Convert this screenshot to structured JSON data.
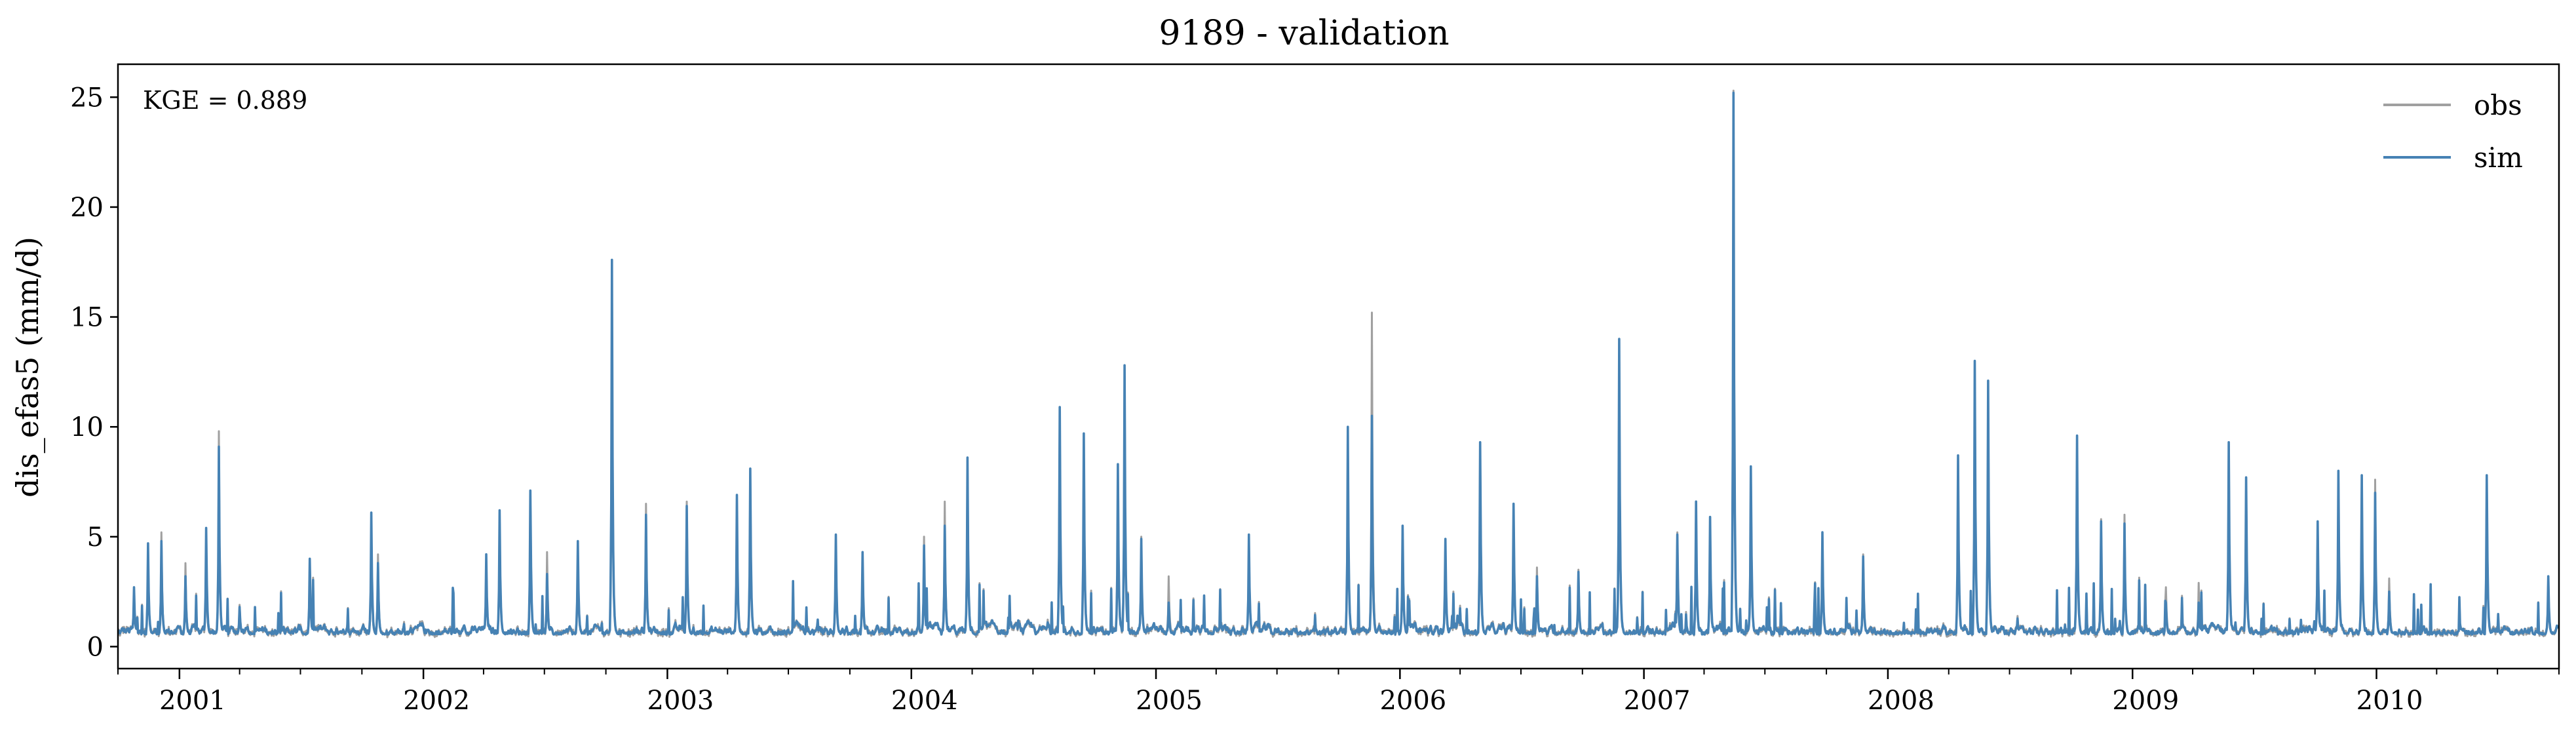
{
  "chart_data": {
    "type": "line",
    "title": "9189 - validation",
    "xlabel": "",
    "ylabel": "dis_efas5 (mm/d)",
    "annotation": "KGE = 0.889",
    "xlim": [
      "2000-10-01",
      "2010-10-01"
    ],
    "ylim": [
      -1,
      26.5
    ],
    "yticks": [
      0,
      5,
      10,
      15,
      20,
      25
    ],
    "xticks": [
      "2001",
      "2002",
      "2003",
      "2004",
      "2005",
      "2006",
      "2007",
      "2008",
      "2009",
      "2010"
    ],
    "legend_position": "top-right",
    "grid": false,
    "baseline": 0.55,
    "series": [
      {
        "name": "obs",
        "color": "#a0a0a0",
        "peaks": [
          [
            "2000-10-25",
            2.4
          ],
          [
            "2000-11-15",
            4.6
          ],
          [
            "2000-12-05",
            5.2
          ],
          [
            "2001-01-10",
            3.8
          ],
          [
            "2001-02-10",
            4.0
          ],
          [
            "2001-03-01",
            9.8
          ],
          [
            "2001-04-01",
            1.9
          ],
          [
            "2001-07-15",
            4.0
          ],
          [
            "2001-10-15",
            4.6
          ],
          [
            "2001-10-25",
            4.2
          ],
          [
            "2002-04-05",
            4.0
          ],
          [
            "2002-04-25",
            6.0
          ],
          [
            "2002-06-10",
            7.0
          ],
          [
            "2002-07-05",
            4.3
          ],
          [
            "2002-08-20",
            4.3
          ],
          [
            "2002-10-10",
            17.5
          ],
          [
            "2002-11-30",
            6.5
          ],
          [
            "2003-01-30",
            6.6
          ],
          [
            "2003-04-15",
            6.7
          ],
          [
            "2003-05-05",
            8.1
          ],
          [
            "2003-09-10",
            4.9
          ],
          [
            "2003-10-20",
            3.9
          ],
          [
            "2004-01-20",
            5.0
          ],
          [
            "2004-02-20",
            6.6
          ],
          [
            "2004-03-25",
            8.6
          ],
          [
            "2004-08-10",
            10.8
          ],
          [
            "2004-09-15",
            9.7
          ],
          [
            "2004-11-05",
            8.3
          ],
          [
            "2004-11-15",
            12.7
          ],
          [
            "2004-12-10",
            5.0
          ],
          [
            "2005-01-20",
            3.2
          ],
          [
            "2005-05-20",
            5.1
          ],
          [
            "2005-10-15",
            10.0
          ],
          [
            "2005-11-20",
            15.2
          ],
          [
            "2006-01-05",
            5.5
          ],
          [
            "2006-03-10",
            4.9
          ],
          [
            "2006-05-01",
            9.3
          ],
          [
            "2006-06-20",
            6.4
          ],
          [
            "2006-07-25",
            3.6
          ],
          [
            "2006-09-25",
            3.5
          ],
          [
            "2006-11-25",
            14.0
          ],
          [
            "2007-02-20",
            5.2
          ],
          [
            "2007-03-20",
            6.6
          ],
          [
            "2007-04-10",
            5.4
          ],
          [
            "2007-05-15",
            25.3
          ],
          [
            "2007-06-10",
            8.2
          ],
          [
            "2007-09-25",
            5.2
          ],
          [
            "2007-11-25",
            4.2
          ],
          [
            "2008-04-15",
            8.7
          ],
          [
            "2008-05-10",
            13.0
          ],
          [
            "2008-05-30",
            12.1
          ],
          [
            "2008-10-10",
            9.6
          ],
          [
            "2008-11-15",
            5.8
          ],
          [
            "2008-12-20",
            6.0
          ],
          [
            "2009-02-20",
            2.7
          ],
          [
            "2009-04-10",
            2.9
          ],
          [
            "2009-05-25",
            9.3
          ],
          [
            "2009-06-20",
            7.7
          ],
          [
            "2009-10-05",
            5.7
          ],
          [
            "2009-11-05",
            8.0
          ],
          [
            "2009-12-10",
            7.8
          ],
          [
            "2009-12-30",
            7.6
          ],
          [
            "2010-01-20",
            3.1
          ],
          [
            "2010-06-15",
            7.8
          ],
          [
            "2010-09-15",
            3.2
          ]
        ]
      },
      {
        "name": "sim",
        "color": "#4682b4",
        "peaks": [
          [
            "2000-10-25",
            2.7
          ],
          [
            "2000-11-15",
            4.7
          ],
          [
            "2000-12-05",
            4.8
          ],
          [
            "2001-01-10",
            3.2
          ],
          [
            "2001-02-10",
            5.4
          ],
          [
            "2001-03-01",
            9.1
          ],
          [
            "2001-04-01",
            1.8
          ],
          [
            "2001-07-15",
            4.0
          ],
          [
            "2001-10-15",
            6.1
          ],
          [
            "2001-10-25",
            3.8
          ],
          [
            "2002-04-05",
            4.2
          ],
          [
            "2002-04-25",
            6.2
          ],
          [
            "2002-06-10",
            7.1
          ],
          [
            "2002-07-05",
            3.3
          ],
          [
            "2002-08-20",
            4.8
          ],
          [
            "2002-10-10",
            17.6
          ],
          [
            "2002-11-30",
            6.0
          ],
          [
            "2003-01-30",
            6.4
          ],
          [
            "2003-04-15",
            6.9
          ],
          [
            "2003-05-05",
            8.1
          ],
          [
            "2003-09-10",
            5.1
          ],
          [
            "2003-10-20",
            4.3
          ],
          [
            "2004-01-20",
            4.6
          ],
          [
            "2004-02-20",
            5.5
          ],
          [
            "2004-03-25",
            8.6
          ],
          [
            "2004-08-10",
            10.9
          ],
          [
            "2004-09-15",
            9.7
          ],
          [
            "2004-11-05",
            8.3
          ],
          [
            "2004-11-15",
            12.8
          ],
          [
            "2004-12-10",
            4.9
          ],
          [
            "2005-01-20",
            2.0
          ],
          [
            "2005-05-20",
            5.1
          ],
          [
            "2005-10-15",
            10.0
          ],
          [
            "2005-11-20",
            10.5
          ],
          [
            "2006-01-05",
            5.5
          ],
          [
            "2006-03-10",
            4.9
          ],
          [
            "2006-05-01",
            9.3
          ],
          [
            "2006-06-20",
            6.5
          ],
          [
            "2006-07-25",
            3.2
          ],
          [
            "2006-09-25",
            3.4
          ],
          [
            "2006-11-25",
            14.0
          ],
          [
            "2007-02-20",
            5.1
          ],
          [
            "2007-03-20",
            6.6
          ],
          [
            "2007-04-10",
            5.9
          ],
          [
            "2007-05-15",
            25.2
          ],
          [
            "2007-06-10",
            8.2
          ],
          [
            "2007-09-25",
            5.2
          ],
          [
            "2007-11-25",
            4.1
          ],
          [
            "2008-04-15",
            8.7
          ],
          [
            "2008-05-10",
            13.0
          ],
          [
            "2008-05-30",
            12.1
          ],
          [
            "2008-10-10",
            9.6
          ],
          [
            "2008-11-15",
            5.7
          ],
          [
            "2008-12-20",
            5.6
          ],
          [
            "2009-02-20",
            2.0
          ],
          [
            "2009-04-10",
            2.0
          ],
          [
            "2009-05-25",
            9.3
          ],
          [
            "2009-06-20",
            7.7
          ],
          [
            "2009-10-05",
            5.7
          ],
          [
            "2009-11-05",
            8.0
          ],
          [
            "2009-12-10",
            7.8
          ],
          [
            "2009-12-30",
            7.0
          ],
          [
            "2010-01-20",
            2.5
          ],
          [
            "2010-06-15",
            7.8
          ],
          [
            "2010-09-15",
            3.2
          ]
        ]
      }
    ]
  }
}
